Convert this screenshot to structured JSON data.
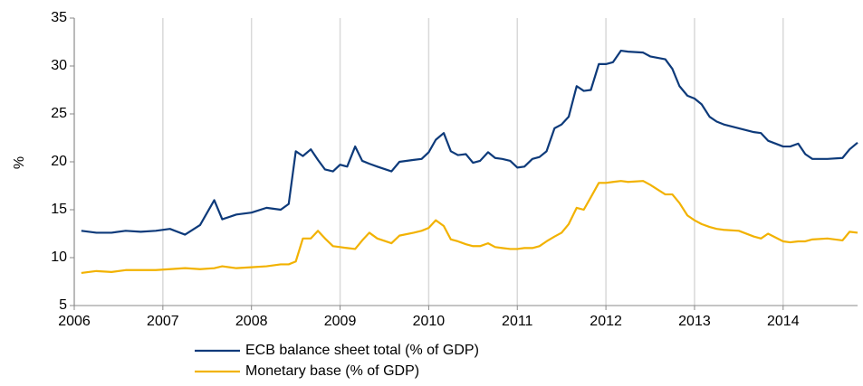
{
  "chart_data": {
    "type": "line",
    "ylabel": "%",
    "x": [
      2006.08,
      2006.25,
      2006.42,
      2006.58,
      2006.75,
      2006.92,
      2007.08,
      2007.25,
      2007.42,
      2007.58,
      2007.67,
      2007.83,
      2008.0,
      2008.17,
      2008.33,
      2008.42,
      2008.5,
      2008.58,
      2008.67,
      2008.75,
      2008.83,
      2008.92,
      2009.0,
      2009.08,
      2009.17,
      2009.25,
      2009.33,
      2009.42,
      2009.58,
      2009.67,
      2009.83,
      2009.92,
      2010.0,
      2010.08,
      2010.17,
      2010.25,
      2010.33,
      2010.42,
      2010.5,
      2010.58,
      2010.67,
      2010.75,
      2010.83,
      2010.92,
      2011.0,
      2011.08,
      2011.17,
      2011.25,
      2011.33,
      2011.42,
      2011.5,
      2011.58,
      2011.67,
      2011.75,
      2011.83,
      2011.92,
      2012.0,
      2012.08,
      2012.17,
      2012.25,
      2012.42,
      2012.5,
      2012.67,
      2012.75,
      2012.83,
      2012.92,
      2013.0,
      2013.08,
      2013.17,
      2013.25,
      2013.33,
      2013.5,
      2013.67,
      2013.75,
      2013.83,
      2014.0,
      2014.08,
      2014.17,
      2014.25,
      2014.33,
      2014.5,
      2014.67,
      2014.75,
      2014.84
    ],
    "series": [
      {
        "name": "ECB balance sheet total (% of GDP)",
        "color": "#0d3a7a",
        "values": [
          12.8,
          12.6,
          12.6,
          12.8,
          12.7,
          12.8,
          13.0,
          12.4,
          13.4,
          16.0,
          14.0,
          14.5,
          14.7,
          15.2,
          15.0,
          15.6,
          21.1,
          20.6,
          21.3,
          20.2,
          19.2,
          19.0,
          19.7,
          19.5,
          21.6,
          20.1,
          19.8,
          19.5,
          19.0,
          20.0,
          20.2,
          20.3,
          21.0,
          22.3,
          23.0,
          21.1,
          20.7,
          20.8,
          19.9,
          20.1,
          21.0,
          20.4,
          20.3,
          20.1,
          19.4,
          19.5,
          20.3,
          20.5,
          21.1,
          23.5,
          23.9,
          24.7,
          27.9,
          27.4,
          27.5,
          30.2,
          30.2,
          30.4,
          31.6,
          31.5,
          31.4,
          31.0,
          30.7,
          29.7,
          27.9,
          26.9,
          26.6,
          26.0,
          24.7,
          24.2,
          23.9,
          23.5,
          23.1,
          23.0,
          22.2,
          21.6,
          21.6,
          21.9,
          20.8,
          20.3,
          20.3,
          20.4,
          21.3,
          22.0
        ]
      },
      {
        "name": "Monetary base (% of GDP)",
        "color": "#f2b200",
        "values": [
          8.4,
          8.6,
          8.5,
          8.7,
          8.7,
          8.7,
          8.8,
          8.9,
          8.8,
          8.9,
          9.1,
          8.9,
          9.0,
          9.1,
          9.3,
          9.3,
          9.6,
          12.0,
          12.0,
          12.8,
          12.0,
          11.2,
          11.1,
          11.0,
          10.9,
          11.8,
          12.6,
          12.0,
          11.5,
          12.3,
          12.6,
          12.8,
          13.1,
          13.9,
          13.3,
          11.9,
          11.7,
          11.4,
          11.2,
          11.2,
          11.5,
          11.1,
          11.0,
          10.9,
          10.9,
          11.0,
          11.0,
          11.2,
          11.7,
          12.2,
          12.6,
          13.5,
          15.2,
          15.0,
          16.3,
          17.8,
          17.8,
          17.9,
          18.0,
          17.9,
          18.0,
          17.6,
          16.6,
          16.6,
          15.7,
          14.4,
          13.9,
          13.5,
          13.2,
          13.0,
          12.9,
          12.8,
          12.2,
          12.0,
          12.5,
          11.7,
          11.6,
          11.7,
          11.7,
          11.9,
          12.0,
          11.8,
          12.7,
          12.6
        ]
      }
    ],
    "xlim": [
      2006,
      2014.84
    ],
    "xticks": [
      2006,
      2007,
      2008,
      2009,
      2010,
      2011,
      2012,
      2013,
      2014
    ],
    "ylim": [
      5,
      35
    ],
    "yticks": [
      5,
      10,
      15,
      20,
      25,
      30,
      35
    ],
    "grid": "x",
    "legend": "bottom"
  }
}
